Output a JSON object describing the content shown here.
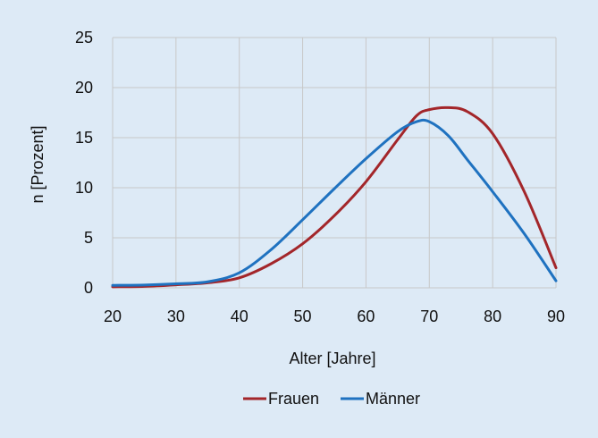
{
  "chart_data": {
    "type": "line",
    "title": "",
    "xlabel": "Alter [Jahre]",
    "ylabel": "n [Prozent]",
    "xlim": [
      20,
      90
    ],
    "ylim": [
      0,
      25
    ],
    "x_ticks": [
      "20",
      "30",
      "40",
      "50",
      "60",
      "70",
      "80",
      "90"
    ],
    "y_ticks": [
      "0",
      "5",
      "10",
      "15",
      "20",
      "25"
    ],
    "grid": true,
    "legend_position": "bottom",
    "series": [
      {
        "name": "Frauen",
        "color": "#a3262a",
        "x": [
          20,
          25,
          30,
          35,
          40,
          45,
          50,
          55,
          60,
          65,
          68,
          70,
          73,
          76,
          80,
          85,
          90
        ],
        "values": [
          0.1,
          0.15,
          0.3,
          0.5,
          1.0,
          2.4,
          4.4,
          7.2,
          10.6,
          14.8,
          17.2,
          17.8,
          18.0,
          17.6,
          15.4,
          9.6,
          2.0
        ]
      },
      {
        "name": "Männer",
        "color": "#1f72c0",
        "x": [
          20,
          25,
          30,
          35,
          40,
          45,
          50,
          55,
          60,
          65,
          68,
          70,
          73,
          76,
          80,
          85,
          90
        ],
        "values": [
          0.25,
          0.28,
          0.4,
          0.6,
          1.5,
          3.8,
          6.8,
          9.9,
          12.9,
          15.6,
          16.6,
          16.6,
          15.2,
          12.8,
          9.6,
          5.4,
          0.7
        ]
      }
    ]
  }
}
